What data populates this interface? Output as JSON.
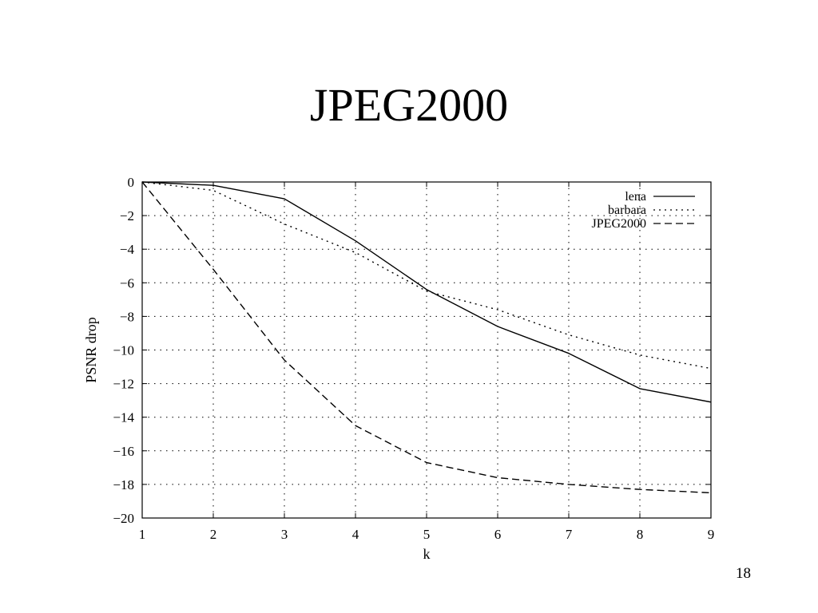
{
  "slide": {
    "title": "JPEG2000",
    "page_number": "18"
  },
  "chart_data": {
    "type": "line",
    "title": "",
    "xlabel": "k",
    "ylabel": "PSNR drop",
    "xlim": [
      1,
      9
    ],
    "ylim": [
      -20,
      0
    ],
    "x_ticks": [
      1,
      2,
      3,
      4,
      5,
      6,
      7,
      8,
      9
    ],
    "y_ticks": [
      0,
      -2,
      -4,
      -6,
      -8,
      -10,
      -12,
      -14,
      -16,
      -18,
      -20
    ],
    "x_tick_labels": [
      "1",
      "2",
      "3",
      "4",
      "5",
      "6",
      "7",
      "8",
      "9"
    ],
    "y_tick_labels": [
      "0",
      "−2",
      "−4",
      "−6",
      "−8",
      "−10",
      "−12",
      "−14",
      "−16",
      "−18",
      "−20"
    ],
    "grid": true,
    "legend_position": "top-right",
    "x": [
      1,
      2,
      3,
      4,
      5,
      6,
      7,
      8,
      9
    ],
    "series": [
      {
        "name": "lena",
        "style": "solid",
        "color": "#000000",
        "values": [
          0,
          -0.2,
          -1.0,
          -3.5,
          -6.4,
          -8.6,
          -10.2,
          -12.3,
          -13.1
        ]
      },
      {
        "name": "barbara",
        "style": "dotted",
        "color": "#000000",
        "values": [
          0,
          -0.5,
          -2.5,
          -4.2,
          -6.5,
          -7.6,
          -9.1,
          -10.3,
          -11.1
        ]
      },
      {
        "name": "JPEG2000",
        "style": "dashed",
        "color": "#000000",
        "values": [
          0,
          -5.2,
          -10.6,
          -14.5,
          -16.7,
          -17.6,
          -18.0,
          -18.3,
          -18.5
        ]
      }
    ]
  }
}
